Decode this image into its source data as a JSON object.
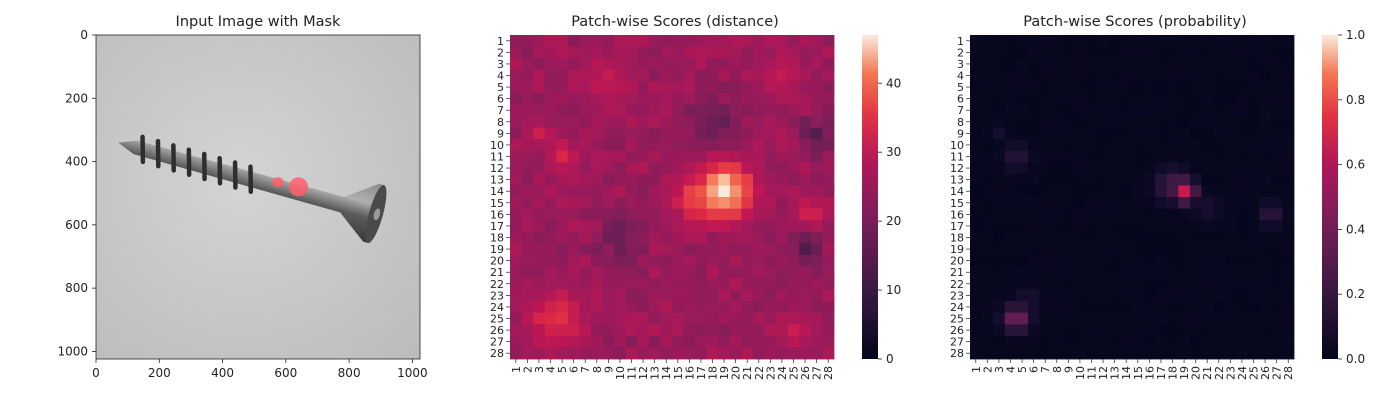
{
  "chart_data": [
    {
      "type": "image",
      "title": "Input Image with Mask",
      "x_ticks": [
        0,
        200,
        400,
        600,
        800,
        1000
      ],
      "y_ticks": [
        0,
        200,
        400,
        600,
        800,
        1000
      ],
      "xlim": [
        0,
        1024
      ],
      "ylim": [
        1024,
        0
      ],
      "description": "Grayscale screw on gray background with red translucent anomaly mask spots",
      "mask_spots": [
        {
          "x": 575,
          "y": 465,
          "rx": 18,
          "ry": 16
        },
        {
          "x": 640,
          "y": 480,
          "rx": 30,
          "ry": 30
        }
      ],
      "screw": {
        "tip": [
          70,
          340
        ],
        "head_center": [
          900,
          570
        ]
      }
    },
    {
      "type": "heatmap",
      "title": "Patch-wise Scores (distance)",
      "rows": 28,
      "cols": 28,
      "x_tick_labels": [
        "1",
        "2",
        "3",
        "4",
        "5",
        "6",
        "7",
        "8",
        "9",
        "10",
        "11",
        "12",
        "13",
        "14",
        "15",
        "16",
        "17",
        "18",
        "19",
        "20",
        "21",
        "22",
        "23",
        "24",
        "25",
        "26",
        "27",
        "28"
      ],
      "y_tick_labels": [
        "1",
        "2",
        "3",
        "4",
        "5",
        "6",
        "7",
        "8",
        "9",
        "10",
        "11",
        "12",
        "13",
        "14",
        "15",
        "16",
        "17",
        "18",
        "19",
        "20",
        "21",
        "22",
        "23",
        "24",
        "25",
        "26",
        "27",
        "28"
      ],
      "colorbar_ticks": [
        0,
        10,
        20,
        30,
        40
      ],
      "vmin": 0,
      "vmax": 47,
      "colormap": "rocket",
      "base_value": 22,
      "hotspots": [
        {
          "row": 14,
          "col": 19,
          "value": 47,
          "spread": 1.8
        },
        {
          "row": 14.5,
          "col": 17,
          "value": 38,
          "spread": 1.6
        },
        {
          "row": 25,
          "col": 4.5,
          "value": 34,
          "spread": 1.8
        },
        {
          "row": 11,
          "col": 5,
          "value": 31,
          "spread": 1.1
        },
        {
          "row": 16,
          "col": 26.5,
          "value": 32,
          "spread": 1.0
        },
        {
          "row": 4.5,
          "col": 9,
          "value": 29,
          "spread": 1.8
        },
        {
          "row": 4,
          "col": 24,
          "value": 28,
          "spread": 1.6
        },
        {
          "row": 9,
          "col": 3,
          "value": 30,
          "spread": 0.8
        },
        {
          "row": 26,
          "col": 25,
          "value": 29,
          "spread": 1.2
        }
      ],
      "coldspots": [
        {
          "row": 8,
          "col": 18,
          "value": 16,
          "spread": 1.6
        },
        {
          "row": 19,
          "col": 26,
          "value": 14,
          "spread": 1.2
        },
        {
          "row": 9,
          "col": 27,
          "value": 15,
          "spread": 1.2
        },
        {
          "row": 18,
          "col": 10,
          "value": 17,
          "spread": 1.6
        }
      ]
    },
    {
      "type": "heatmap",
      "title": "Patch-wise Scores (probability)",
      "rows": 28,
      "cols": 28,
      "x_tick_labels": [
        "1",
        "2",
        "3",
        "4",
        "5",
        "6",
        "7",
        "8",
        "9",
        "10",
        "11",
        "12",
        "13",
        "14",
        "15",
        "16",
        "17",
        "18",
        "19",
        "20",
        "21",
        "22",
        "23",
        "24",
        "25",
        "26",
        "27",
        "28"
      ],
      "y_tick_labels": [
        "1",
        "2",
        "3",
        "4",
        "5",
        "6",
        "7",
        "8",
        "9",
        "10",
        "11",
        "12",
        "13",
        "14",
        "15",
        "16",
        "17",
        "18",
        "19",
        "20",
        "21",
        "22",
        "23",
        "24",
        "25",
        "26",
        "27",
        "28"
      ],
      "colorbar_ticks": [
        "0.0",
        "0.2",
        "0.4",
        "0.6",
        "0.8",
        "1.0"
      ],
      "vmin": 0,
      "vmax": 1,
      "colormap": "rocket",
      "base_value": 0.01,
      "hotspots": [
        {
          "row": 14,
          "col": 19,
          "value": 0.62,
          "spread": 0.7
        },
        {
          "row": 13.5,
          "col": 18,
          "value": 0.25,
          "spread": 1.0
        },
        {
          "row": 25,
          "col": 4.5,
          "value": 0.4,
          "spread": 0.8
        },
        {
          "row": 11,
          "col": 4.5,
          "value": 0.15,
          "spread": 0.8
        },
        {
          "row": 16,
          "col": 26.5,
          "value": 0.18,
          "spread": 0.7
        },
        {
          "row": 9,
          "col": 3,
          "value": 0.08,
          "spread": 0.6
        },
        {
          "row": 23.5,
          "col": 5.5,
          "value": 0.1,
          "spread": 0.9
        },
        {
          "row": 15.5,
          "col": 21,
          "value": 0.08,
          "spread": 1.0
        }
      ]
    }
  ]
}
